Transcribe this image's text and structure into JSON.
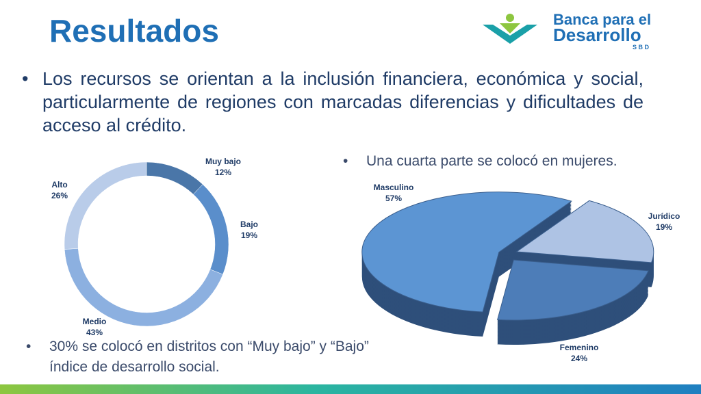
{
  "header": {
    "title": "Resultados",
    "logo": {
      "line1": "Banca para el",
      "line2": "Desarrollo",
      "line3": "S B D"
    }
  },
  "bullets": [
    "Los recursos se orientan a la inclusión financiera, económica y social, particularmente de regiones con marcadas diferencias y dificultades de acceso al crédito.",
    "Una cuarta parte se colocó en mujeres.",
    "30%  se colocó en distritos con “Muy bajo” y “Bajo” índice de desarrollo social."
  ],
  "chart_data": [
    {
      "type": "donut",
      "categories": [
        "Muy bajo",
        "Bajo",
        "Medio",
        "Alto"
      ],
      "values": [
        12,
        19,
        43,
        26
      ],
      "value_labels": [
        "12%",
        "19%",
        "43%",
        "26%"
      ],
      "colors": [
        "#4a76a8",
        "#5a8ecb",
        "#8cb0e0",
        "#b9cce9"
      ]
    },
    {
      "type": "pie3d",
      "categories": [
        "Jurídico",
        "Femenino",
        "Masculino"
      ],
      "values": [
        19,
        24,
        57
      ],
      "value_labels": [
        "19%",
        "24%",
        "57%"
      ],
      "colors": [
        "#aec3e4",
        "#4d7db8",
        "#5c95d3"
      ]
    }
  ]
}
